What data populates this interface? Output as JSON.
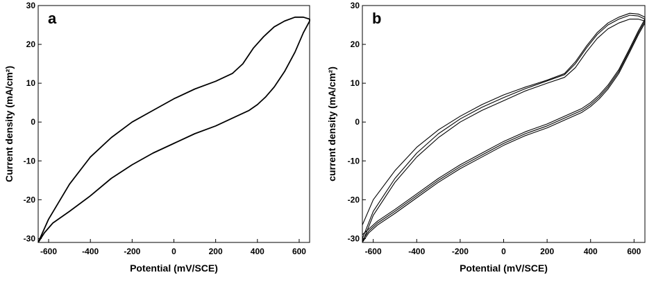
{
  "chart_data": [
    {
      "type": "line",
      "panel_label": "a",
      "xlabel": "Potential (mV/SCE)",
      "ylabel": "Current density (mA/cm²)",
      "xlim": [
        -650,
        650
      ],
      "ylim": [
        -31,
        30
      ],
      "xticks": [
        -600,
        -400,
        -200,
        0,
        200,
        400,
        600
      ],
      "yticks": [
        -30,
        -20,
        -10,
        0,
        10,
        20,
        30
      ],
      "grid": false,
      "series": [
        {
          "values_anodic": [
            [
              -650,
              -31
            ],
            [
              -600,
              -25
            ],
            [
              -500,
              -16
            ],
            [
              -400,
              -9
            ],
            [
              -300,
              -4
            ],
            [
              -200,
              0
            ],
            [
              -100,
              3
            ],
            [
              0,
              6
            ],
            [
              100,
              8.5
            ],
            [
              200,
              10.5
            ],
            [
              280,
              12.5
            ],
            [
              330,
              15
            ],
            [
              380,
              19
            ],
            [
              430,
              22
            ],
            [
              480,
              24.5
            ],
            [
              530,
              26
            ],
            [
              580,
              27
            ],
            [
              620,
              27
            ],
            [
              650,
              26.5
            ]
          ],
          "values_cathodic": [
            [
              650,
              26
            ],
            [
              620,
              23
            ],
            [
              580,
              18
            ],
            [
              530,
              13
            ],
            [
              480,
              9
            ],
            [
              440,
              6.5
            ],
            [
              400,
              4.5
            ],
            [
              360,
              3
            ],
            [
              300,
              1.5
            ],
            [
              200,
              -1
            ],
            [
              100,
              -3
            ],
            [
              0,
              -5.5
            ],
            [
              -100,
              -8
            ],
            [
              -200,
              -11
            ],
            [
              -300,
              -14.5
            ],
            [
              -400,
              -19
            ],
            [
              -500,
              -23
            ],
            [
              -580,
              -26
            ],
            [
              -620,
              -28.5
            ],
            [
              -650,
              -31
            ]
          ]
        }
      ]
    },
    {
      "type": "line",
      "panel_label": "b",
      "xlabel": "Potential (mV/SCE)",
      "ylabel": "current density (mA/cm²)",
      "xlim": [
        -650,
        650
      ],
      "ylim": [
        -31,
        30
      ],
      "xticks": [
        -600,
        -400,
        -200,
        0,
        200,
        400,
        600
      ],
      "yticks": [
        -30,
        -20,
        -10,
        0,
        10,
        20,
        30
      ],
      "grid": false,
      "series": [
        {
          "values_anodic": [
            [
              -650,
              -31
            ],
            [
              -600,
              -24
            ],
            [
              -500,
              -15.5
            ],
            [
              -400,
              -9
            ],
            [
              -300,
              -4
            ],
            [
              -200,
              0
            ],
            [
              -100,
              3
            ],
            [
              0,
              5.5
            ],
            [
              100,
              8
            ],
            [
              200,
              10
            ],
            [
              280,
              11.5
            ],
            [
              330,
              14
            ],
            [
              380,
              18
            ],
            [
              430,
              21.5
            ],
            [
              480,
              24
            ],
            [
              530,
              25.5
            ],
            [
              580,
              26.5
            ],
            [
              620,
              26.5
            ],
            [
              650,
              26
            ]
          ],
          "values_cathodic": [
            [
              650,
              25.5
            ],
            [
              620,
              22.5
            ],
            [
              580,
              18
            ],
            [
              530,
              12.5
            ],
            [
              480,
              8.5
            ],
            [
              440,
              6
            ],
            [
              400,
              4
            ],
            [
              360,
              2.5
            ],
            [
              300,
              1
            ],
            [
              200,
              -1.5
            ],
            [
              100,
              -3.5
            ],
            [
              0,
              -6
            ],
            [
              -100,
              -9
            ],
            [
              -200,
              -12
            ],
            [
              -300,
              -15.5
            ],
            [
              -400,
              -19.5
            ],
            [
              -500,
              -23.5
            ],
            [
              -580,
              -26.5
            ],
            [
              -620,
              -28.5
            ],
            [
              -650,
              -31
            ]
          ]
        },
        {
          "values_anodic": [
            [
              -650,
              -30
            ],
            [
              -600,
              -23
            ],
            [
              -500,
              -14.5
            ],
            [
              -400,
              -8
            ],
            [
              -300,
              -3
            ],
            [
              -200,
              0.8
            ],
            [
              -100,
              3.8
            ],
            [
              0,
              6.3
            ],
            [
              100,
              8.6
            ],
            [
              200,
              10.6
            ],
            [
              280,
              12.2
            ],
            [
              330,
              15
            ],
            [
              380,
              19
            ],
            [
              430,
              22.5
            ],
            [
              480,
              25
            ],
            [
              530,
              26.5
            ],
            [
              580,
              27.5
            ],
            [
              620,
              27.3
            ],
            [
              650,
              26.5
            ]
          ],
          "values_cathodic": [
            [
              650,
              26
            ],
            [
              620,
              23
            ],
            [
              580,
              18.5
            ],
            [
              530,
              13
            ],
            [
              480,
              9
            ],
            [
              440,
              6.5
            ],
            [
              400,
              4.5
            ],
            [
              360,
              3
            ],
            [
              300,
              1.5
            ],
            [
              200,
              -1
            ],
            [
              100,
              -3
            ],
            [
              0,
              -5.5
            ],
            [
              -100,
              -8.5
            ],
            [
              -200,
              -11.5
            ],
            [
              -300,
              -15
            ],
            [
              -400,
              -19
            ],
            [
              -500,
              -23
            ],
            [
              -580,
              -26
            ],
            [
              -620,
              -28
            ],
            [
              -650,
              -30.5
            ]
          ]
        },
        {
          "values_anodic": [
            [
              -650,
              -26.5
            ],
            [
              -600,
              -20
            ],
            [
              -500,
              -12.5
            ],
            [
              -400,
              -6.5
            ],
            [
              -300,
              -2
            ],
            [
              -200,
              1.5
            ],
            [
              -100,
              4.5
            ],
            [
              0,
              7
            ],
            [
              100,
              9
            ],
            [
              200,
              10.8
            ],
            [
              280,
              12.5
            ],
            [
              330,
              15.5
            ],
            [
              380,
              19.5
            ],
            [
              430,
              23
            ],
            [
              480,
              25.5
            ],
            [
              530,
              27
            ],
            [
              580,
              28
            ],
            [
              620,
              27.8
            ],
            [
              650,
              27
            ]
          ],
          "values_cathodic": [
            [
              650,
              26.5
            ],
            [
              620,
              23.5
            ],
            [
              580,
              19
            ],
            [
              530,
              13.5
            ],
            [
              480,
              9.5
            ],
            [
              440,
              7
            ],
            [
              400,
              5
            ],
            [
              360,
              3.5
            ],
            [
              300,
              2
            ],
            [
              200,
              -0.5
            ],
            [
              100,
              -2.5
            ],
            [
              0,
              -5
            ],
            [
              -100,
              -8
            ],
            [
              -200,
              -11
            ],
            [
              -300,
              -14.5
            ],
            [
              -400,
              -18.5
            ],
            [
              -500,
              -22.5
            ],
            [
              -580,
              -25.5
            ],
            [
              -620,
              -27.5
            ],
            [
              -650,
              -29
            ]
          ]
        }
      ]
    }
  ]
}
